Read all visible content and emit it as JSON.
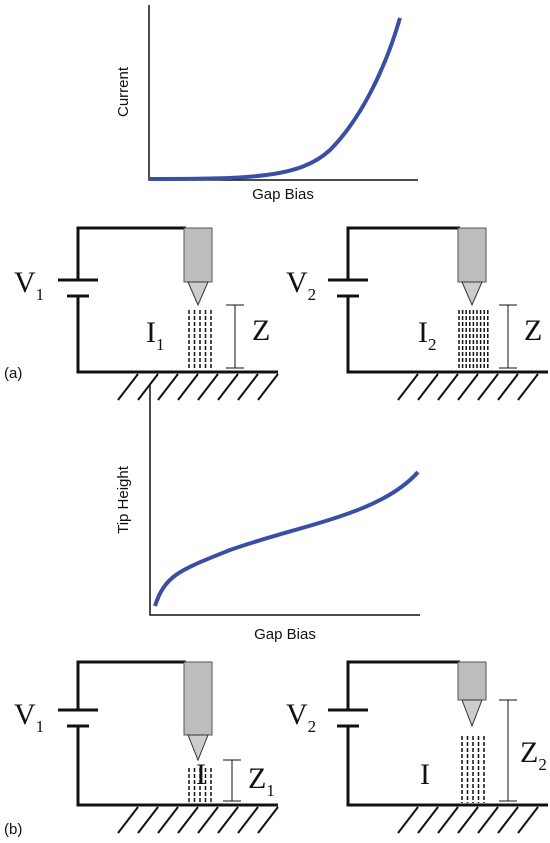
{
  "panel_a": {
    "label": "(a)",
    "graph": {
      "y_label": "Current",
      "x_label": "Gap Bias"
    },
    "circuits": [
      {
        "voltage": {
          "symbol": "V",
          "subscript": "1"
        },
        "current": {
          "symbol": "I",
          "subscript": "1"
        },
        "height": {
          "symbol": "Z"
        }
      },
      {
        "voltage": {
          "symbol": "V",
          "subscript": "2"
        },
        "current": {
          "symbol": "I",
          "subscript": "2"
        },
        "height": {
          "symbol": "Z"
        }
      }
    ]
  },
  "panel_b": {
    "label": "(b)",
    "graph": {
      "y_label": "Tip Height",
      "x_label": "Gap Bias"
    },
    "circuits": [
      {
        "voltage": {
          "symbol": "V",
          "subscript": "1"
        },
        "current": {
          "symbol": "I"
        },
        "height": {
          "symbol": "Z",
          "subscript": "1"
        }
      },
      {
        "voltage": {
          "symbol": "V",
          "subscript": "2"
        },
        "current": {
          "symbol": "I"
        },
        "height": {
          "symbol": "Z",
          "subscript": "2"
        }
      }
    ]
  }
}
